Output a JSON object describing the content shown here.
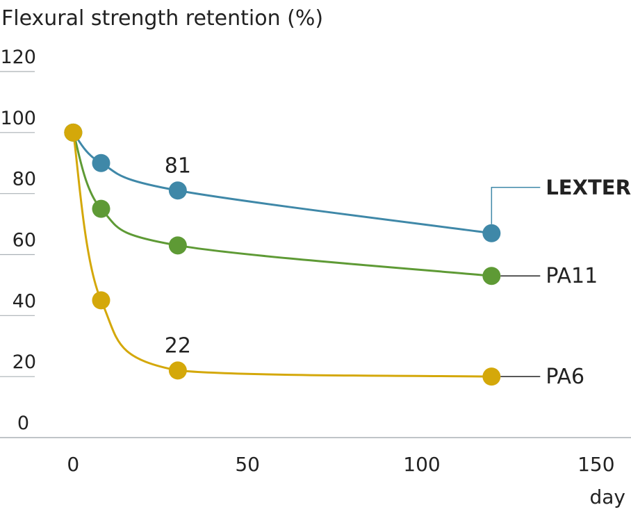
{
  "chart_data": {
    "type": "line",
    "title": "Flexural strength retention (%)",
    "x_label": "day",
    "x": [
      0,
      8,
      30,
      120
    ],
    "series": [
      {
        "name": "LEXTER",
        "color": "#3f88a8",
        "values": [
          100,
          90,
          81,
          67
        ]
      },
      {
        "name": "PA11",
        "color": "#5e9a35",
        "values": [
          100,
          75,
          63,
          53
        ]
      },
      {
        "name": "PA6",
        "color": "#d4a80a",
        "values": [
          100,
          45,
          22,
          20
        ]
      }
    ],
    "xlim": [
      -21,
      160
    ],
    "xticks": [
      0,
      50,
      100,
      150
    ],
    "ylim": [
      0,
      120
    ],
    "yticks": [
      0,
      20,
      40,
      60,
      80,
      100,
      120
    ]
  }
}
